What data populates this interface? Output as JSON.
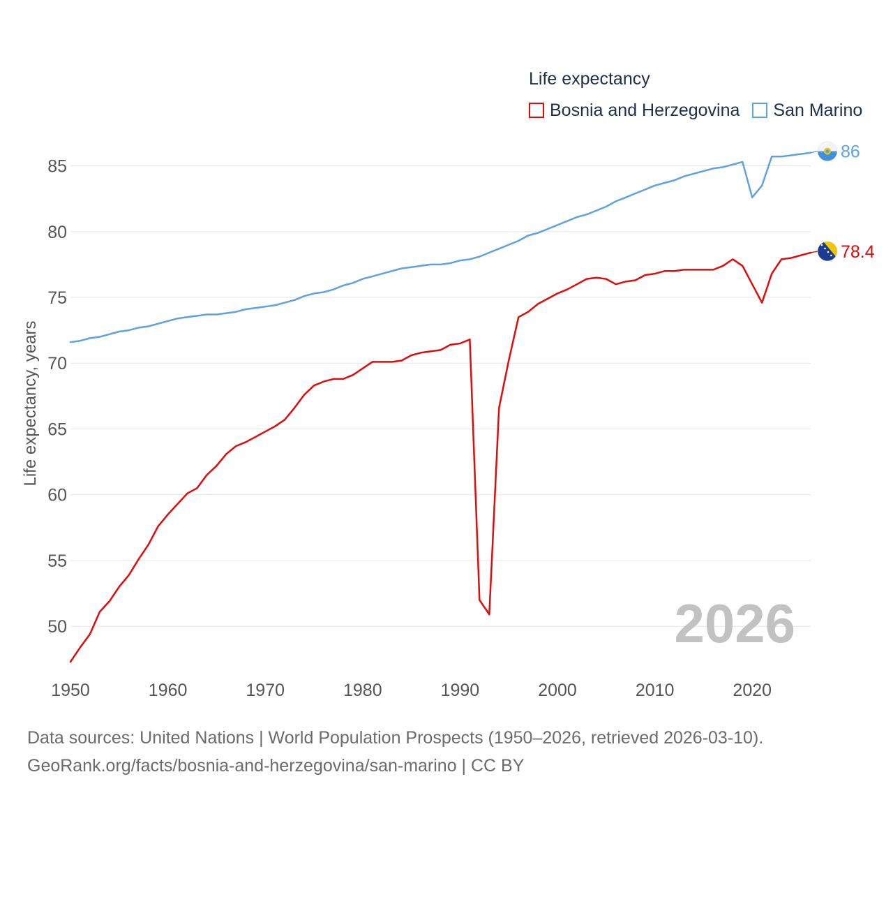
{
  "legend": {
    "title": "Life expectancy"
  },
  "footer": {
    "sources": "Data sources: United Nations | World Population Prospects (1950–2026, retrieved 2026-03-10).",
    "link": "GeoRank.org/facts/bosnia-and-herzegovina/san-marino | CC BY"
  },
  "chart_data": {
    "type": "line",
    "title": "Life expectancy",
    "xlabel": "",
    "ylabel": "Life expectancy, years",
    "watermark_year": "2026",
    "xlim": [
      1950,
      2026
    ],
    "ylim": [
      45.5,
      88
    ],
    "x_ticks": [
      1950,
      1960,
      1970,
      1980,
      1990,
      2000,
      2010,
      2020
    ],
    "y_ticks": [
      50,
      55,
      60,
      65,
      70,
      75,
      80,
      85
    ],
    "grid": true,
    "legend_position": "top-right",
    "series": [
      {
        "name": "Bosnia and Herzegovina",
        "color": "#e00b0b",
        "end_label": "78.4",
        "flag_icon": "bosnia-flag-icon",
        "x": [
          1950,
          1951,
          1952,
          1953,
          1954,
          1955,
          1956,
          1957,
          1958,
          1959,
          1960,
          1961,
          1962,
          1963,
          1964,
          1965,
          1966,
          1967,
          1968,
          1969,
          1970,
          1971,
          1972,
          1973,
          1974,
          1975,
          1976,
          1977,
          1978,
          1979,
          1980,
          1981,
          1982,
          1983,
          1984,
          1985,
          1986,
          1987,
          1988,
          1989,
          1990,
          1991,
          1992,
          1993,
          1994,
          1995,
          1996,
          1997,
          1998,
          1999,
          2000,
          2001,
          2002,
          2003,
          2004,
          2005,
          2006,
          2007,
          2008,
          2009,
          2010,
          2011,
          2012,
          2013,
          2014,
          2015,
          2016,
          2017,
          2018,
          2019,
          2020,
          2021,
          2022,
          2023,
          2024,
          2025,
          2026
        ],
        "values": [
          47.3,
          48.4,
          49.4,
          51.1,
          51.9,
          53.0,
          53.9,
          55.1,
          56.2,
          57.6,
          58.5,
          59.3,
          60.1,
          60.5,
          61.5,
          62.2,
          63.1,
          63.7,
          64.0,
          64.4,
          64.8,
          65.2,
          65.7,
          66.6,
          67.6,
          68.3,
          68.6,
          68.8,
          68.8,
          69.1,
          69.6,
          70.1,
          70.1,
          70.1,
          70.2,
          70.6,
          70.8,
          70.9,
          71.0,
          71.4,
          71.5,
          71.8,
          52.0,
          50.9,
          66.6,
          70.2,
          73.5,
          73.9,
          74.5,
          74.9,
          75.3,
          75.6,
          76.0,
          76.4,
          76.5,
          76.4,
          76.0,
          76.2,
          76.3,
          76.7,
          76.8,
          77.0,
          77.0,
          77.1,
          77.1,
          77.1,
          77.1,
          77.4,
          77.9,
          77.4,
          76.0,
          74.6,
          76.8,
          77.9,
          78.0,
          78.2,
          78.4
        ]
      },
      {
        "name": "San Marino",
        "color": "#5ea2e0",
        "end_label": "86",
        "flag_icon": "san-marino-flag-icon",
        "x": [
          1950,
          1951,
          1952,
          1953,
          1954,
          1955,
          1956,
          1957,
          1958,
          1959,
          1960,
          1961,
          1962,
          1963,
          1964,
          1965,
          1966,
          1967,
          1968,
          1969,
          1970,
          1971,
          1972,
          1973,
          1974,
          1975,
          1976,
          1977,
          1978,
          1979,
          1980,
          1981,
          1982,
          1983,
          1984,
          1985,
          1986,
          1987,
          1988,
          1989,
          1990,
          1991,
          1992,
          1993,
          1994,
          1995,
          1996,
          1997,
          1998,
          1999,
          2000,
          2001,
          2002,
          2003,
          2004,
          2005,
          2006,
          2007,
          2008,
          2009,
          2010,
          2011,
          2012,
          2013,
          2014,
          2015,
          2016,
          2017,
          2018,
          2019,
          2020,
          2021,
          2022,
          2023,
          2024,
          2025,
          2026
        ],
        "values": [
          71.6,
          71.7,
          71.9,
          72.0,
          72.2,
          72.4,
          72.5,
          72.7,
          72.8,
          73.0,
          73.2,
          73.4,
          73.5,
          73.6,
          73.7,
          73.7,
          73.8,
          73.9,
          74.1,
          74.2,
          74.3,
          74.4,
          74.6,
          74.8,
          75.1,
          75.3,
          75.4,
          75.6,
          75.9,
          76.1,
          76.4,
          76.6,
          76.8,
          77.0,
          77.2,
          77.3,
          77.4,
          77.5,
          77.5,
          77.6,
          77.8,
          77.9,
          78.1,
          78.4,
          78.7,
          79.0,
          79.3,
          79.7,
          79.9,
          80.2,
          80.5,
          80.8,
          81.1,
          81.3,
          81.6,
          81.9,
          82.3,
          82.6,
          82.9,
          83.2,
          83.5,
          83.7,
          83.9,
          84.2,
          84.4,
          84.6,
          84.8,
          84.9,
          85.1,
          85.3,
          82.6,
          83.5,
          85.7,
          85.7,
          85.8,
          85.9,
          86.0
        ]
      }
    ]
  }
}
